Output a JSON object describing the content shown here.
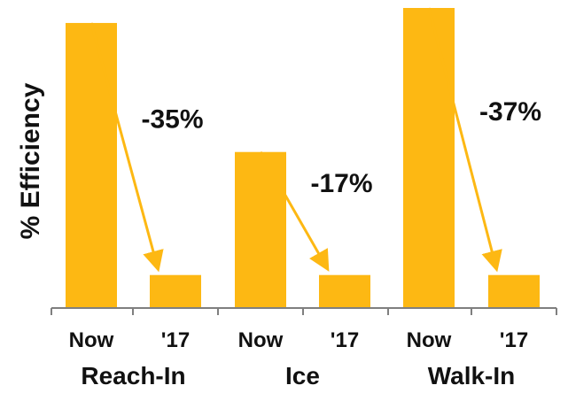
{
  "chart_data": {
    "type": "bar",
    "title": "",
    "xlabel": "",
    "ylabel": "% Efficiency",
    "ylim": [
      0,
      1
    ],
    "grid": false,
    "legend": "",
    "bar_color": "#FDB813",
    "arrow_color": "#FDB813",
    "axis_color": "#7F7F7F",
    "text_color": "#111111",
    "categories": [
      "Now",
      "'17",
      "Now",
      "'17",
      "Now",
      "'17"
    ],
    "values": [
      0.95,
      0.11,
      0.52,
      0.11,
      1.0,
      0.11
    ],
    "groups": [
      {
        "label": "Reach-In",
        "start": 0,
        "end": 1
      },
      {
        "label": "Ice",
        "start": 2,
        "end": 3
      },
      {
        "label": "Walk-In",
        "start": 4,
        "end": 5
      }
    ],
    "annotations": [
      {
        "from": 0,
        "to": 1,
        "label": "-35%"
      },
      {
        "from": 2,
        "to": 3,
        "label": "-17%"
      },
      {
        "from": 4,
        "to": 5,
        "label": "-37%"
      }
    ]
  }
}
